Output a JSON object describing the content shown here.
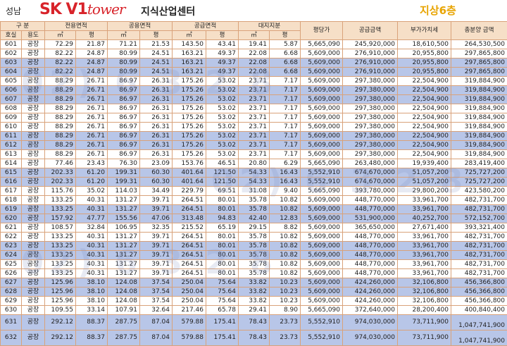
{
  "header": {
    "location": "성남",
    "brand": "SK V1",
    "brand_sub": "tower",
    "title": "지식산업센터",
    "floor": "지상6층"
  },
  "table": {
    "group_headers": [
      "구 분",
      "전용면적",
      "공용면적",
      "공급면적",
      "대지지분",
      "평당가",
      "공급금액",
      "부가가치세",
      "총분양 금액"
    ],
    "sub_headers": [
      "호실",
      "용도",
      "㎡",
      "평",
      "㎡",
      "평",
      "㎡",
      "평",
      "㎡",
      "평"
    ],
    "rows": [
      {
        "hl": false,
        "c": [
          "601",
          "공장",
          "72.29",
          "21.87",
          "71.21",
          "21.53",
          "143.50",
          "43.41",
          "19.41",
          "5.87",
          "5,665,090",
          "245,920,000",
          "18,610,500",
          "264,530,500"
        ]
      },
      {
        "hl": false,
        "c": [
          "602",
          "공장",
          "82.22",
          "24.87",
          "80.99",
          "24.51",
          "163.21",
          "49.37",
          "22.08",
          "6.68",
          "5,609,000",
          "276,910,000",
          "20,955,800",
          "297,865,800"
        ]
      },
      {
        "hl": true,
        "c": [
          "603",
          "공장",
          "82.22",
          "24.87",
          "80.99",
          "24.51",
          "163.21",
          "49.37",
          "22.08",
          "6.68",
          "5,609,000",
          "276,910,000",
          "20,955,800",
          "297,865,800"
        ]
      },
      {
        "hl": true,
        "c": [
          "604",
          "공장",
          "82.22",
          "24.87",
          "80.99",
          "24.51",
          "163.21",
          "49.37",
          "22.08",
          "6.68",
          "5,609,000",
          "276,910,000",
          "20,955,800",
          "297,865,800"
        ]
      },
      {
        "hl": false,
        "c": [
          "605",
          "공장",
          "88.29",
          "26.71",
          "86.97",
          "26.31",
          "175.26",
          "53.02",
          "23.71",
          "7.17",
          "5,609,000",
          "297,380,000",
          "22,504,900",
          "319,884,900"
        ]
      },
      {
        "hl": true,
        "c": [
          "606",
          "공장",
          "88.29",
          "26.71",
          "86.97",
          "26.31",
          "175.26",
          "53.02",
          "23.71",
          "7.17",
          "5,609,000",
          "297,380,000",
          "22,504,900",
          "319,884,900"
        ]
      },
      {
        "hl": true,
        "c": [
          "607",
          "공장",
          "88.29",
          "26.71",
          "86.97",
          "26.31",
          "175.26",
          "53.02",
          "23.71",
          "7.17",
          "5,609,000",
          "297,380,000",
          "22,504,900",
          "319,884,900"
        ]
      },
      {
        "hl": false,
        "c": [
          "608",
          "공장",
          "88.29",
          "26.71",
          "86.97",
          "26.31",
          "175.26",
          "53.02",
          "23.71",
          "7.17",
          "5,609,000",
          "297,380,000",
          "22,504,900",
          "319,884,900"
        ]
      },
      {
        "hl": false,
        "c": [
          "609",
          "공장",
          "88.29",
          "26.71",
          "86.97",
          "26.31",
          "175.26",
          "53.02",
          "23.71",
          "7.17",
          "5,609,000",
          "297,380,000",
          "22,504,900",
          "319,884,900"
        ]
      },
      {
        "hl": false,
        "c": [
          "610",
          "공장",
          "88.29",
          "26.71",
          "86.97",
          "26.31",
          "175.26",
          "53.02",
          "23.71",
          "7.17",
          "5,609,000",
          "297,380,000",
          "22,504,900",
          "319,884,900"
        ]
      },
      {
        "hl": true,
        "c": [
          "611",
          "공장",
          "88.29",
          "26.71",
          "86.97",
          "26.31",
          "175.26",
          "53.02",
          "23.71",
          "7.17",
          "5,609,000",
          "297,380,000",
          "22,504,900",
          "319,884,900"
        ]
      },
      {
        "hl": true,
        "c": [
          "612",
          "공장",
          "88.29",
          "26.71",
          "86.97",
          "26.31",
          "175.26",
          "53.02",
          "23.71",
          "7.17",
          "5,609,000",
          "297,380,000",
          "22,504,900",
          "319,884,900"
        ]
      },
      {
        "hl": false,
        "c": [
          "613",
          "공장",
          "88.29",
          "26.71",
          "86.97",
          "26.31",
          "175.26",
          "53.02",
          "23.71",
          "7.17",
          "5,609,000",
          "297,380,000",
          "22,504,900",
          "319,884,900"
        ]
      },
      {
        "hl": false,
        "c": [
          "614",
          "공장",
          "77.46",
          "23.43",
          "76.30",
          "23.09",
          "153.76",
          "46.51",
          "20.80",
          "6.29",
          "5,665,090",
          "263,480,000",
          "19,939,400",
          "283,419,400"
        ]
      },
      {
        "hl": true,
        "c": [
          "615",
          "공장",
          "202.33",
          "61.20",
          "199.31",
          "60.30",
          "401.64",
          "121.50",
          "54.33",
          "16.43",
          "5,552,910",
          "674,670,000",
          "51,057,200",
          "725,727,200"
        ]
      },
      {
        "hl": true,
        "c": [
          "616",
          "공장",
          "202.33",
          "61.20",
          "199.31",
          "60.30",
          "401.64",
          "121.50",
          "54.33",
          "16.43",
          "5,552,910",
          "674,670,000",
          "51,057,200",
          "725,727,200"
        ]
      },
      {
        "hl": false,
        "c": [
          "617",
          "공장",
          "115.76",
          "35.02",
          "114.03",
          "34.49",
          "229.79",
          "69.51",
          "31.08",
          "9.40",
          "5,665,090",
          "393,780,000",
          "29,800,200",
          "423,580,200"
        ]
      },
      {
        "hl": false,
        "c": [
          "618",
          "공장",
          "133.25",
          "40.31",
          "131.27",
          "39.71",
          "264.51",
          "80.01",
          "35.78",
          "10.82",
          "5,609,000",
          "448,770,000",
          "33,961,700",
          "482,731,700"
        ]
      },
      {
        "hl": true,
        "c": [
          "619",
          "공장",
          "133.25",
          "40.31",
          "131.27",
          "39.71",
          "264.51",
          "80.01",
          "35.78",
          "10.82",
          "5,609,000",
          "448,770,000",
          "33,961,700",
          "482,731,700"
        ]
      },
      {
        "hl": true,
        "c": [
          "620",
          "공장",
          "157.92",
          "47.77",
          "155.56",
          "47.06",
          "313.48",
          "94.83",
          "42.40",
          "12.83",
          "5,609,000",
          "531,900,000",
          "40,252,700",
          "572,152,700"
        ]
      },
      {
        "hl": false,
        "c": [
          "621",
          "공장",
          "108.57",
          "32.84",
          "106.95",
          "32.35",
          "215.52",
          "65.19",
          "29.15",
          "8.82",
          "5,609,000",
          "365,650,000",
          "27,671,400",
          "393,321,400"
        ]
      },
      {
        "hl": false,
        "c": [
          "622",
          "공장",
          "133.25",
          "40.31",
          "131.27",
          "39.71",
          "264.51",
          "80.01",
          "35.78",
          "10.82",
          "5,609,000",
          "448,770,000",
          "33,961,700",
          "482,731,700"
        ]
      },
      {
        "hl": true,
        "c": [
          "623",
          "공장",
          "133.25",
          "40.31",
          "131.27",
          "39.71",
          "264.51",
          "80.01",
          "35.78",
          "10.82",
          "5,609,000",
          "448,770,000",
          "33,961,700",
          "482,731,700"
        ]
      },
      {
        "hl": true,
        "c": [
          "624",
          "공장",
          "133.25",
          "40.31",
          "131.27",
          "39.71",
          "264.51",
          "80.01",
          "35.78",
          "10.82",
          "5,609,000",
          "448,770,000",
          "33,961,700",
          "482,731,700"
        ]
      },
      {
        "hl": false,
        "c": [
          "625",
          "공장",
          "133.25",
          "40.31",
          "131.27",
          "39.71",
          "264.51",
          "80.01",
          "35.78",
          "10.82",
          "5,609,000",
          "448,770,000",
          "33,961,700",
          "482,731,700"
        ]
      },
      {
        "hl": false,
        "c": [
          "626",
          "공장",
          "133.25",
          "40.31",
          "131.27",
          "39.71",
          "264.51",
          "80.01",
          "35.78",
          "10.82",
          "5,609,000",
          "448,770,000",
          "33,961,700",
          "482,731,700"
        ]
      },
      {
        "hl": true,
        "c": [
          "627",
          "공장",
          "125.96",
          "38.10",
          "124.08",
          "37.54",
          "250.04",
          "75.64",
          "33.82",
          "10.23",
          "5,609,000",
          "424,260,000",
          "32,106,800",
          "456,366,800"
        ]
      },
      {
        "hl": true,
        "c": [
          "628",
          "공장",
          "125.96",
          "38.10",
          "124.08",
          "37.54",
          "250.04",
          "75.64",
          "33.82",
          "10.23",
          "5,609,000",
          "424,260,000",
          "32,106,800",
          "456,366,800"
        ]
      },
      {
        "hl": false,
        "c": [
          "629",
          "공장",
          "125.96",
          "38.10",
          "124.08",
          "37.54",
          "250.04",
          "75.64",
          "33.82",
          "10.23",
          "5,609,000",
          "424,260,000",
          "32,106,800",
          "456,366,800"
        ]
      },
      {
        "hl": false,
        "c": [
          "630",
          "공장",
          "109.55",
          "33.14",
          "107.91",
          "32.64",
          "217.46",
          "65.78",
          "29.41",
          "8.90",
          "5,665,090",
          "372,640,000",
          "28,200,400",
          "400,840,400"
        ]
      },
      {
        "hl": true,
        "tall": true,
        "c": [
          "631",
          "공장",
          "292.12",
          "88.37",
          "287.75",
          "87.04",
          "579.88",
          "175.41",
          "78.43",
          "23.73",
          "5,552,910",
          "974,030,000",
          "73,711,900",
          "1,047,741,900"
        ]
      },
      {
        "hl": true,
        "tall": true,
        "c": [
          "632",
          "공장",
          "292.12",
          "88.37",
          "287.75",
          "87.04",
          "579.88",
          "175.41",
          "78.43",
          "23.73",
          "5,552,910",
          "974,030,000",
          "73,711,900",
          "1,047,741,900"
        ]
      }
    ]
  }
}
